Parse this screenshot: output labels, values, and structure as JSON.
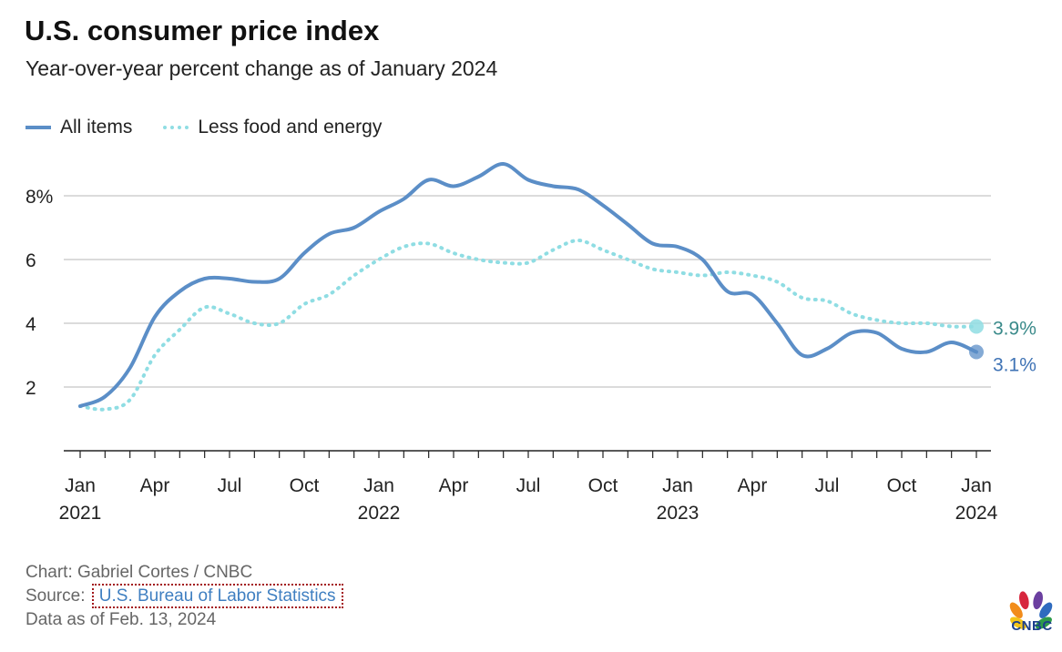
{
  "title": "U.S. consumer price index",
  "subtitle": "Year-over-year percent change as of January 2024",
  "legend": [
    {
      "label": "All items",
      "color": "#5b8ec7",
      "style": "solid"
    },
    {
      "label": "Less food and energy",
      "color": "#8fdde3",
      "style": "dotted"
    }
  ],
  "footer": {
    "credit": "Chart: Gabriel Cortes / CNBC",
    "source_prefix": "Source:",
    "source_link": "U.S. Bureau of Labor Statistics",
    "data_as_of": "Data as of Feb. 13, 2024"
  },
  "logo_text": "CNBC",
  "chart_data": {
    "type": "line",
    "title": "U.S. consumer price index",
    "subtitle": "Year-over-year percent change as of January 2024",
    "xlabel": "",
    "ylabel": "",
    "ylim": [
      0,
      9.5
    ],
    "yticks": [
      {
        "value": 2,
        "label": "2"
      },
      {
        "value": 4,
        "label": "4"
      },
      {
        "value": 6,
        "label": "6"
      },
      {
        "value": 8,
        "label": "8%"
      }
    ],
    "xticks": [
      {
        "index": 0,
        "month": "Jan",
        "year": "2021"
      },
      {
        "index": 3,
        "month": "Apr",
        "year": ""
      },
      {
        "index": 6,
        "month": "Jul",
        "year": ""
      },
      {
        "index": 9,
        "month": "Oct",
        "year": ""
      },
      {
        "index": 12,
        "month": "Jan",
        "year": "2022"
      },
      {
        "index": 15,
        "month": "Apr",
        "year": ""
      },
      {
        "index": 18,
        "month": "Jul",
        "year": ""
      },
      {
        "index": 21,
        "month": "Oct",
        "year": ""
      },
      {
        "index": 24,
        "month": "Jan",
        "year": "2023"
      },
      {
        "index": 27,
        "month": "Apr",
        "year": ""
      },
      {
        "index": 30,
        "month": "Jul",
        "year": ""
      },
      {
        "index": 33,
        "month": "Oct",
        "year": ""
      },
      {
        "index": 36,
        "month": "Jan",
        "year": "2024"
      }
    ],
    "x": [
      "Jan 2021",
      "Feb 2021",
      "Mar 2021",
      "Apr 2021",
      "May 2021",
      "Jun 2021",
      "Jul 2021",
      "Aug 2021",
      "Sep 2021",
      "Oct 2021",
      "Nov 2021",
      "Dec 2021",
      "Jan 2022",
      "Feb 2022",
      "Mar 2022",
      "Apr 2022",
      "May 2022",
      "Jun 2022",
      "Jul 2022",
      "Aug 2022",
      "Sep 2022",
      "Oct 2022",
      "Nov 2022",
      "Dec 2022",
      "Jan 2023",
      "Feb 2023",
      "Mar 2023",
      "Apr 2023",
      "May 2023",
      "Jun 2023",
      "Jul 2023",
      "Aug 2023",
      "Sep 2023",
      "Oct 2023",
      "Nov 2023",
      "Dec 2023",
      "Jan 2024"
    ],
    "series": [
      {
        "name": "All items",
        "color": "#5b8ec7",
        "style": "solid",
        "end_label": "3.1%",
        "values": [
          1.4,
          1.7,
          2.6,
          4.2,
          5.0,
          5.4,
          5.4,
          5.3,
          5.4,
          6.2,
          6.8,
          7.0,
          7.5,
          7.9,
          8.5,
          8.3,
          8.6,
          9.0,
          8.5,
          8.3,
          8.2,
          7.7,
          7.1,
          6.5,
          6.4,
          6.0,
          5.0,
          4.9,
          4.0,
          3.0,
          3.2,
          3.7,
          3.7,
          3.2,
          3.1,
          3.4,
          3.1
        ]
      },
      {
        "name": "Less food and energy",
        "color": "#8fdde3",
        "style": "dotted",
        "end_label": "3.9%",
        "values": [
          1.4,
          1.3,
          1.6,
          3.0,
          3.8,
          4.5,
          4.3,
          4.0,
          4.0,
          4.6,
          4.9,
          5.5,
          6.0,
          6.4,
          6.5,
          6.2,
          6.0,
          5.9,
          5.9,
          6.3,
          6.6,
          6.3,
          6.0,
          5.7,
          5.6,
          5.5,
          5.6,
          5.5,
          5.3,
          4.8,
          4.7,
          4.3,
          4.1,
          4.0,
          4.0,
          3.9,
          3.9
        ]
      }
    ]
  }
}
